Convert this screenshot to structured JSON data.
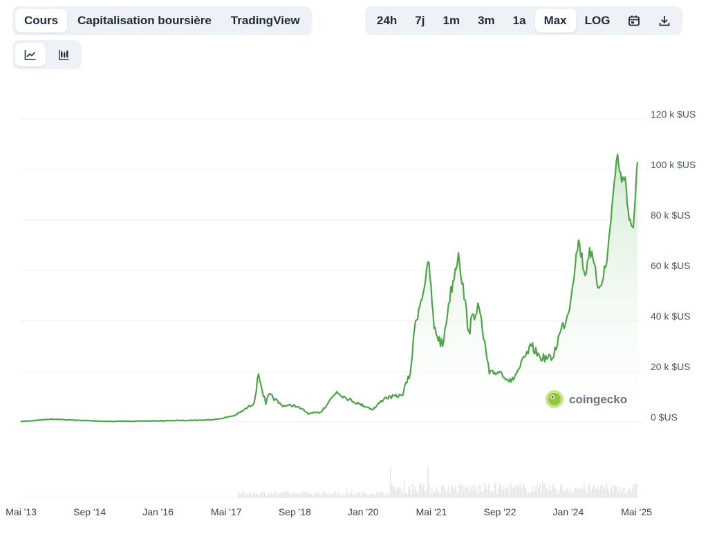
{
  "tabs": [
    {
      "label": "Cours",
      "active": true
    },
    {
      "label": "Capitalisation boursière",
      "active": false
    },
    {
      "label": "TradingView",
      "active": false
    }
  ],
  "ranges": [
    {
      "label": "24h",
      "active": false
    },
    {
      "label": "7j",
      "active": false
    },
    {
      "label": "1m",
      "active": false
    },
    {
      "label": "3m",
      "active": false
    },
    {
      "label": "1a",
      "active": false
    },
    {
      "label": "Max",
      "active": true
    },
    {
      "label": "LOG",
      "active": false
    }
  ],
  "icons": {
    "calendar": "calendar-icon",
    "download": "download-icon",
    "line": "line-chart-icon",
    "candle": "candlestick-icon"
  },
  "watermark": "coingecko",
  "colors": {
    "line": "#4ea34a",
    "fill_top": "#cfe9cf",
    "grid": "#eceff3",
    "volume": "#e5e7eb"
  },
  "chart_data": {
    "type": "line",
    "series": [
      {
        "x": [
          "2013-04-28",
          "2013-12-01",
          "2014-06-01",
          "2015-01-15",
          "2016-01-01",
          "2016-12-01",
          "2017-03-01",
          "2017-05-01",
          "2017-07-01",
          "2017-09-01",
          "2017-11-15",
          "2017-12-17",
          "2018-02-06",
          "2018-03-01",
          "2018-06-01",
          "2018-09-01",
          "2018-12-15",
          "2019-03-01",
          "2019-06-26",
          "2019-09-01",
          "2019-12-01",
          "2020-03-13",
          "2020-06-01",
          "2020-10-01",
          "2020-12-01",
          "2021-01-08",
          "2021-02-15",
          "2021-04-14",
          "2021-05-20",
          "2021-07-20",
          "2021-09-01",
          "2021-11-10",
          "2022-01-22",
          "2022-03-28",
          "2022-06-18",
          "2022-09-01",
          "2022-11-21",
          "2023-01-15",
          "2023-04-14",
          "2023-06-15",
          "2023-09-11",
          "2023-11-01",
          "2024-01-01",
          "2024-03-14",
          "2024-05-01",
          "2024-06-01",
          "2024-08-05",
          "2024-10-01",
          "2024-11-15",
          "2024-12-17",
          "2025-01-15",
          "2025-02-10",
          "2025-03-10",
          "2025-04-08",
          "2025-05-08"
        ],
        "values": [
          135,
          1150,
          650,
          220,
          430,
          750,
          1100,
          1800,
          2600,
          4600,
          7500,
          19000,
          7000,
          11000,
          6500,
          6500,
          3300,
          3800,
          12000,
          9500,
          7200,
          5000,
          9500,
          10500,
          19000,
          40000,
          48000,
          63000,
          37000,
          30000,
          47000,
          67000,
          36000,
          47000,
          19000,
          20000,
          15800,
          21000,
          30000,
          25500,
          25200,
          35000,
          43000,
          72000,
          58000,
          69000,
          53000,
          63000,
          90000,
          106000,
          95000,
          97000,
          80000,
          77000,
          103000
        ]
      }
    ],
    "y_ticks": [
      "0 $US",
      "20 k $US",
      "40 k $US",
      "60 k $US",
      "80 k $US",
      "100 k $US",
      "120 k $US"
    ],
    "ylim": [
      0,
      120000
    ],
    "x_ticks": [
      {
        "label": "Mai '13",
        "date": "2013-05-01"
      },
      {
        "label": "Sep '14",
        "date": "2014-09-01"
      },
      {
        "label": "Jan '16",
        "date": "2016-01-01"
      },
      {
        "label": "Mai '17",
        "date": "2017-05-01"
      },
      {
        "label": "Sep '18",
        "date": "2018-09-01"
      },
      {
        "label": "Jan '20",
        "date": "2020-01-01"
      },
      {
        "label": "Mai '21",
        "date": "2021-05-01"
      },
      {
        "label": "Sep '22",
        "date": "2022-09-01"
      },
      {
        "label": "Jan '24",
        "date": "2024-01-01"
      },
      {
        "label": "Mai '25",
        "date": "2025-05-01"
      }
    ],
    "grid": true,
    "legend": "none"
  }
}
